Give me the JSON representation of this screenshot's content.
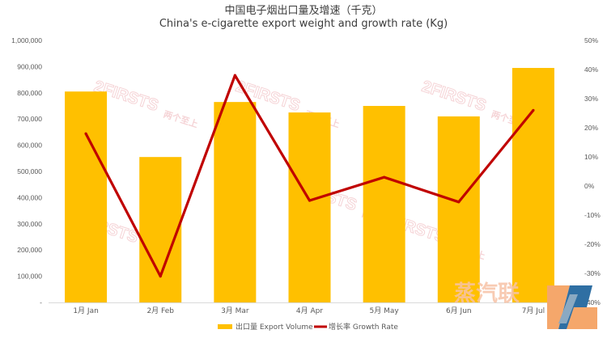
{
  "chart_data": {
    "type": "bar",
    "title": "中国电子烟出口量及增速（千克）",
    "subtitle": "China's e-cigarette export weight and growth rate (Kg)",
    "categories": [
      "1月 Jan",
      "2月 Feb",
      "3月 Mar",
      "4月 Apr",
      "5月 May",
      "6月 Jun",
      "7月 Jul"
    ],
    "series": [
      {
        "name": "出口量 Export Volume",
        "type": "bar",
        "axis": "left",
        "color": "#ffc000",
        "values": [
          805000,
          555000,
          765000,
          725000,
          750000,
          710000,
          895000
        ]
      },
      {
        "name": "增长率 Growth Rate",
        "type": "line",
        "axis": "right",
        "color": "#c00000",
        "values": [
          18,
          -31,
          38,
          -5,
          3,
          -5.5,
          26
        ]
      }
    ],
    "y_left": {
      "min": 0,
      "max": 1000000,
      "ticks": [
        0,
        100000,
        200000,
        300000,
        400000,
        500000,
        600000,
        700000,
        800000,
        900000,
        1000000
      ],
      "tick_labels": [
        "-",
        "100,000",
        "200,000",
        "300,000",
        "400,000",
        "500,000",
        "600,000",
        "700,000",
        "800,000",
        "900,000",
        "1,000,000"
      ]
    },
    "y_right": {
      "min": -40,
      "max": 50,
      "unit": "%",
      "ticks": [
        -40,
        -30,
        -20,
        -10,
        0,
        10,
        20,
        30,
        40,
        50
      ],
      "tick_labels": [
        "-40%",
        "-30%",
        "-20%",
        "-10%",
        "0%",
        "10%",
        "20%",
        "30%",
        "40%",
        "50%"
      ]
    },
    "legend_position": "bottom",
    "grid": false
  },
  "watermark": {
    "text": "2FIRSTS",
    "cn_text": "两个至上",
    "logo_text": "蒸汽联"
  }
}
